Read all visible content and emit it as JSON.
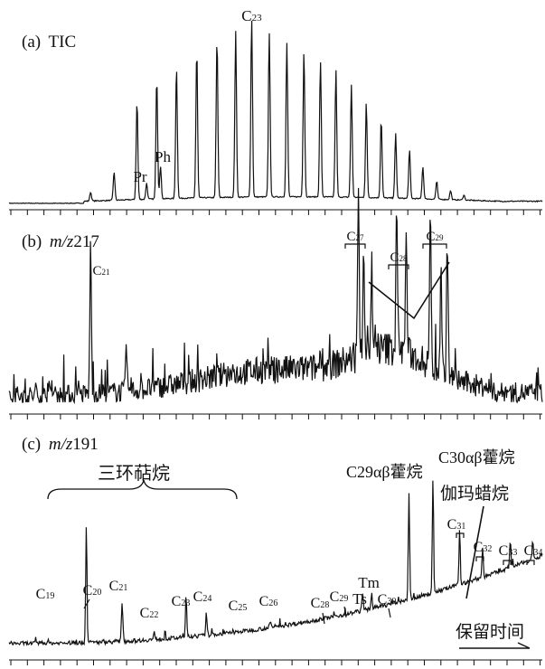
{
  "chart_data": [
    {
      "type": "line",
      "panel_label": "(a) TIC",
      "panel_letter": "(a)",
      "panel_name": "TIC",
      "peak_labels": [
        {
          "text": "C23",
          "base": "C",
          "sub": "23",
          "x_rt": 0.455
        },
        {
          "text": "Pr",
          "x_rt": 0.245
        },
        {
          "text": "Ph",
          "x_rt": 0.27
        }
      ],
      "series": [
        {
          "peaks": [
            {
              "x_rt": 0.153,
              "y": 0.05
            },
            {
              "x_rt": 0.197,
              "y": 0.16
            },
            {
              "x_rt": 0.24,
              "y": 0.55
            },
            {
              "x_rt": 0.258,
              "y": 0.09
            },
            {
              "x_rt": 0.277,
              "y": 0.68
            },
            {
              "x_rt": 0.284,
              "y": 0.18
            },
            {
              "x_rt": 0.314,
              "y": 0.74
            },
            {
              "x_rt": 0.352,
              "y": 0.83
            },
            {
              "x_rt": 0.39,
              "y": 0.89
            },
            {
              "x_rt": 0.425,
              "y": 0.93
            },
            {
              "x_rt": 0.455,
              "y": 1.0
            },
            {
              "x_rt": 0.488,
              "y": 0.92
            },
            {
              "x_rt": 0.521,
              "y": 0.86
            },
            {
              "x_rt": 0.553,
              "y": 0.82
            },
            {
              "x_rt": 0.584,
              "y": 0.76
            },
            {
              "x_rt": 0.613,
              "y": 0.71
            },
            {
              "x_rt": 0.642,
              "y": 0.63
            },
            {
              "x_rt": 0.67,
              "y": 0.53
            },
            {
              "x_rt": 0.698,
              "y": 0.44
            },
            {
              "x_rt": 0.725,
              "y": 0.36
            },
            {
              "x_rt": 0.751,
              "y": 0.27
            },
            {
              "x_rt": 0.776,
              "y": 0.18
            },
            {
              "x_rt": 0.802,
              "y": 0.1
            },
            {
              "x_rt": 0.828,
              "y": 0.05
            },
            {
              "x_rt": 0.853,
              "y": 0.03
            }
          ]
        }
      ]
    },
    {
      "type": "line",
      "panel_label": "(b) m/z217",
      "panel_letter": "(b)",
      "panel_name": "m/z",
      "panel_number": "217",
      "peak_labels": [
        {
          "text": "C21",
          "base": "C",
          "sub": "21",
          "x_rt": 0.153
        },
        {
          "text": "C27",
          "base": "C",
          "sub": "27",
          "x_rt": 0.655
        },
        {
          "text": "C28",
          "base": "C",
          "sub": "28",
          "x_rt": 0.735
        },
        {
          "text": "C29",
          "base": "C",
          "sub": "29",
          "x_rt": 0.8
        }
      ],
      "series": [
        {
          "peaks": [
            {
              "x_rt": 0.153,
              "y": 0.95
            },
            {
              "x_rt": 0.22,
              "y": 0.25
            },
            {
              "x_rt": 0.655,
              "y": 1.0
            },
            {
              "x_rt": 0.665,
              "y": 0.72
            },
            {
              "x_rt": 0.68,
              "y": 0.55
            },
            {
              "x_rt": 0.727,
              "y": 0.98
            },
            {
              "x_rt": 0.745,
              "y": 0.76
            },
            {
              "x_rt": 0.79,
              "y": 1.0
            },
            {
              "x_rt": 0.81,
              "y": 0.7
            },
            {
              "x_rt": 0.822,
              "y": 0.86
            }
          ]
        }
      ]
    },
    {
      "type": "line",
      "panel_label": "(c) m/z191",
      "panel_letter": "(c)",
      "panel_name": "m/z",
      "panel_number": "191",
      "annotations": {
        "tricyclic_terpanes": "三环萜烷",
        "c29_hopane": "C29αβ藿烷",
        "c30_hopane": "C30αβ藿烷",
        "gammacerane": "伽玛蜡烷",
        "retention_time": "保留时间"
      },
      "peak_labels": [
        {
          "text": "C19",
          "base": "C",
          "sub": "19",
          "x_rt": 0.073
        },
        {
          "text": "C20",
          "base": "C",
          "sub": "20",
          "x_rt": 0.16
        },
        {
          "text": "C21",
          "base": "C",
          "sub": "21",
          "x_rt": 0.212
        },
        {
          "text": "C22",
          "base": "C",
          "sub": "22",
          "x_rt": 0.272
        },
        {
          "text": "C23",
          "base": "C",
          "sub": "23",
          "x_rt": 0.332
        },
        {
          "text": "C24",
          "base": "C",
          "sub": "24",
          "x_rt": 0.37
        },
        {
          "text": "C25",
          "base": "C",
          "sub": "25",
          "x_rt": 0.435
        },
        {
          "text": "C26",
          "base": "C",
          "sub": "26",
          "x_rt": 0.49
        },
        {
          "text": "C28",
          "base": "C",
          "sub": "28",
          "x_rt": 0.605
        },
        {
          "text": "C29",
          "base": "C",
          "sub": "29",
          "x_rt": 0.635
        },
        {
          "text": "Ts",
          "x_rt": 0.658
        },
        {
          "text": "Tm",
          "x_rt": 0.68
        },
        {
          "text": "C30",
          "base": "C",
          "sub": "30",
          "x_rt": 0.708
        },
        {
          "text": "C31",
          "base": "C",
          "sub": "31",
          "x_rt": 0.845
        },
        {
          "text": "C32",
          "base": "C",
          "sub": "32",
          "x_rt": 0.888
        },
        {
          "text": "C33",
          "base": "C",
          "sub": "33",
          "x_rt": 0.94
        },
        {
          "text": "C34",
          "base": "C",
          "sub": "34",
          "x_rt": 0.982
        }
      ],
      "series": [
        {
          "peaks": [
            {
              "x_rt": 0.073,
              "y": 0.02
            },
            {
              "x_rt": 0.145,
              "y": 1.0
            },
            {
              "x_rt": 0.212,
              "y": 0.34
            },
            {
              "x_rt": 0.272,
              "y": 0.06
            },
            {
              "x_rt": 0.332,
              "y": 0.35
            },
            {
              "x_rt": 0.37,
              "y": 0.2
            },
            {
              "x_rt": 0.49,
              "y": 0.05
            },
            {
              "x_rt": 0.663,
              "y": 0.16
            },
            {
              "x_rt": 0.68,
              "y": 0.13
            },
            {
              "x_rt": 0.75,
              "y": 0.91
            },
            {
              "x_rt": 0.795,
              "y": 0.96
            },
            {
              "x_rt": 0.845,
              "y": 0.48
            },
            {
              "x_rt": 0.888,
              "y": 0.25
            },
            {
              "x_rt": 0.94,
              "y": 0.22
            },
            {
              "x_rt": 0.982,
              "y": 0.16
            }
          ]
        }
      ]
    }
  ]
}
